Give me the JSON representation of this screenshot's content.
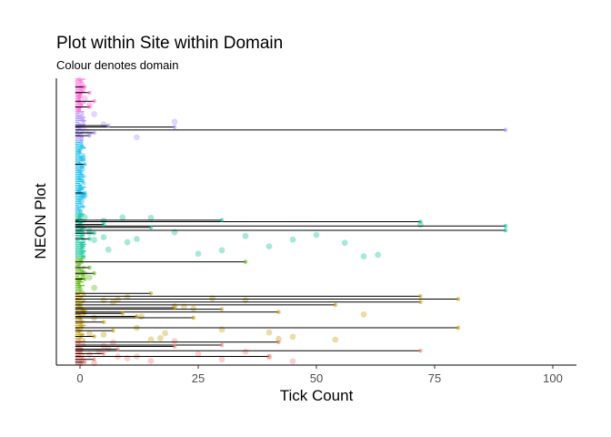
{
  "chart_data": {
    "type": "scatter",
    "title": "Plot within Site within Domain",
    "subtitle": "Colour denotes domain",
    "xlabel": "Tick Count",
    "ylabel": "NEON Plot",
    "xlim": [
      -5,
      105
    ],
    "x_ticks": [
      0,
      25,
      50,
      75,
      100
    ],
    "y_ticks": [],
    "grid": false,
    "legend": "none",
    "series": [
      {
        "color": "#F8766D",
        "y_range": [
          0.0,
          0.085
        ],
        "segments": [
          [
            -1,
            1,
            0.01
          ],
          [
            -1,
            40,
            0.03
          ],
          [
            -1,
            72,
            0.05
          ],
          [
            -1,
            30,
            0.07
          ],
          [
            -1,
            42,
            0.08
          ],
          [
            -1,
            20,
            0.065
          ],
          [
            -1,
            5,
            0.04
          ],
          [
            -1,
            3,
            0.02
          ],
          [
            -1,
            8,
            0.055
          ]
        ],
        "dots": [
          2,
          4,
          6,
          10,
          15,
          20,
          25,
          30,
          35,
          40,
          45,
          5,
          8,
          12,
          3,
          7
        ]
      },
      {
        "color": "#C49A00",
        "y_range": [
          0.085,
          0.255
        ],
        "segments": [
          [
            -1,
            80,
            0.13
          ],
          [
            -1,
            42,
            0.185
          ],
          [
            -1,
            72,
            0.22
          ],
          [
            -1,
            72,
            0.24
          ],
          [
            -1,
            54,
            0.21
          ],
          [
            -1,
            80,
            0.23
          ],
          [
            -1,
            30,
            0.195
          ],
          [
            -1,
            24,
            0.165
          ],
          [
            -1,
            12,
            0.17
          ],
          [
            -1,
            5,
            0.15
          ],
          [
            -1,
            7,
            0.12
          ],
          [
            -1,
            20,
            0.2
          ],
          [
            -1,
            3,
            0.1
          ],
          [
            -1,
            9,
            0.18
          ],
          [
            -1,
            15,
            0.25
          ]
        ],
        "dots": [
          1,
          3,
          5,
          7,
          10,
          12,
          15,
          18,
          20,
          22,
          24,
          28,
          30,
          35,
          40,
          42,
          45,
          54,
          60,
          5,
          8,
          2,
          13,
          17
        ]
      },
      {
        "color": "#53B400",
        "y_range": [
          0.255,
          0.375
        ],
        "segments": [
          [
            -1,
            35,
            0.36
          ],
          [
            -1,
            2,
            0.34
          ],
          [
            -1,
            1,
            0.3
          ],
          [
            -1,
            3,
            0.32
          ]
        ],
        "dots": [
          1,
          2,
          3
        ]
      },
      {
        "color": "#00C094",
        "y_range": [
          0.375,
          0.53
        ],
        "segments": [
          [
            -1,
            90,
            0.47
          ],
          [
            -1,
            90,
            0.485
          ],
          [
            -1,
            72,
            0.5
          ],
          [
            -1,
            30,
            0.505
          ],
          [
            -1,
            15,
            0.48
          ],
          [
            -1,
            5,
            0.49
          ],
          [
            -1,
            3,
            0.46
          ],
          [
            -1,
            2,
            0.44
          ]
        ],
        "dots": [
          1,
          2,
          3,
          5,
          6,
          10,
          12,
          15,
          20,
          25,
          30,
          35,
          40,
          45,
          50,
          56,
          60,
          63,
          72,
          5,
          2,
          9
        ]
      },
      {
        "color": "#00B6EB",
        "y_range": [
          0.53,
          0.78
        ],
        "segments": [
          [
            -1,
            1,
            0.6
          ],
          [
            -1,
            1,
            0.7
          ]
        ],
        "dots": [
          0,
          1
        ]
      },
      {
        "color": "#A58AFF",
        "y_range": [
          0.78,
          0.88
        ],
        "segments": [
          [
            -1,
            90,
            0.82
          ],
          [
            -1,
            20,
            0.83
          ],
          [
            -1,
            6,
            0.835
          ],
          [
            -1,
            3,
            0.81
          ],
          [
            -1,
            2,
            0.8
          ]
        ],
        "dots": [
          1,
          2,
          3,
          5,
          12,
          20
        ]
      },
      {
        "color": "#FB61D7",
        "y_range": [
          0.88,
          1.0
        ],
        "segments": [
          [
            -1,
            2,
            0.9
          ],
          [
            -1,
            3,
            0.92
          ],
          [
            -1,
            2,
            0.95
          ],
          [
            -1,
            1,
            0.97
          ]
        ],
        "dots": [
          0,
          1,
          2
        ]
      }
    ]
  }
}
